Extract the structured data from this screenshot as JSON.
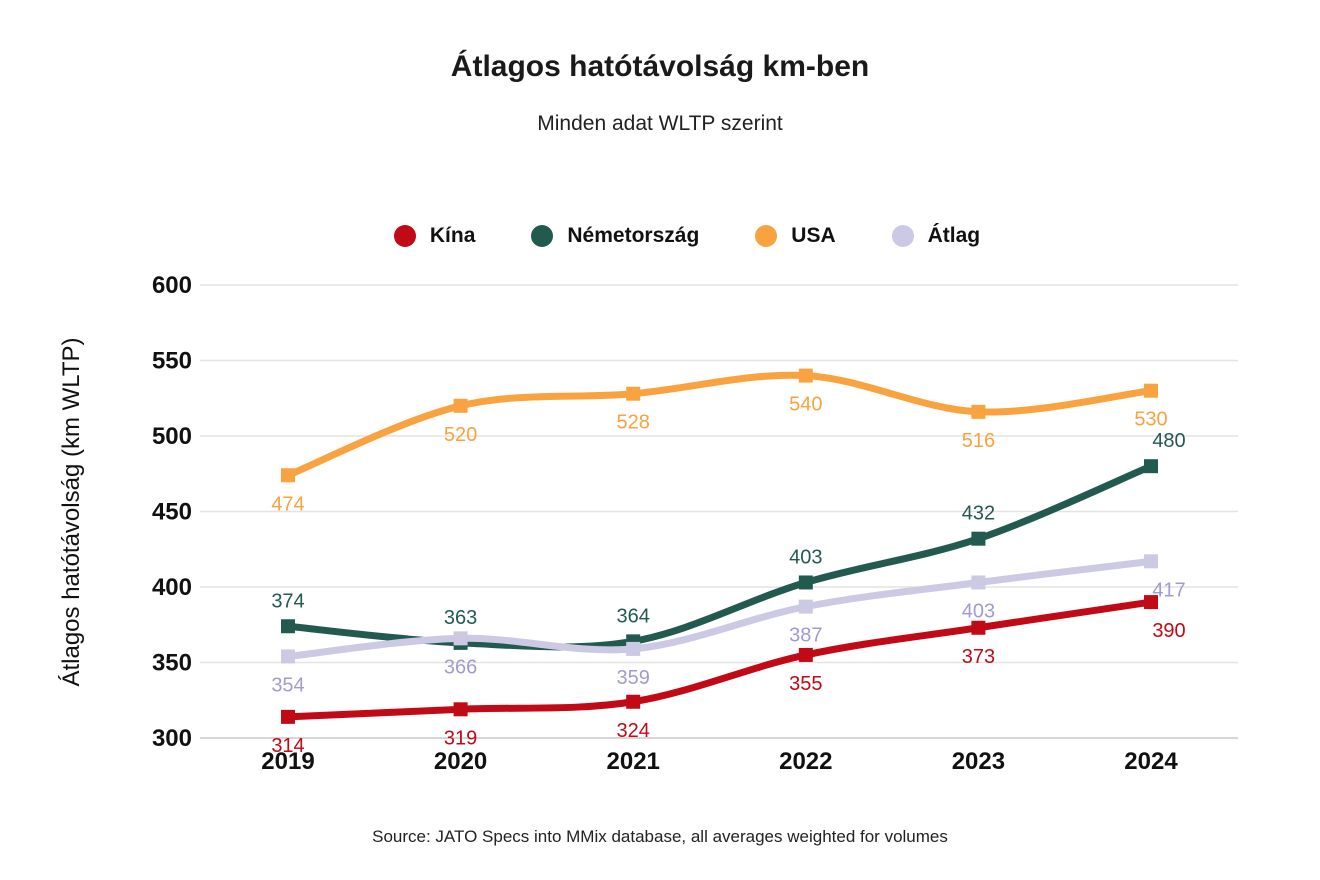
{
  "title": "Átlagos hatótávolság km-ben",
  "subtitle": "Minden adat WLTP szerint",
  "source": "Source: JATO Specs into MMix database, all averages weighted for volumes",
  "chart_data": {
    "type": "line",
    "x": [
      "2019",
      "2020",
      "2021",
      "2022",
      "2023",
      "2024"
    ],
    "xlabel": "",
    "ylabel": "Átlagos hatótávolság (km WLTP)",
    "ylim": [
      300,
      600
    ],
    "yticks": [
      300,
      350,
      400,
      450,
      500,
      550,
      600
    ],
    "grid": true,
    "legend_position": "top",
    "series": [
      {
        "name": "Kína",
        "color": "#c20a17",
        "label_color": "#c20a17",
        "label_position": "below",
        "end_label_dx": 18,
        "values": [
          314,
          319,
          324,
          355,
          373,
          390
        ]
      },
      {
        "name": "Németország",
        "color": "#235a50",
        "label_color": "#235a50",
        "label_position": "above",
        "end_label_dx": 18,
        "values": [
          374,
          363,
          364,
          403,
          432,
          480
        ]
      },
      {
        "name": "USA",
        "color": "#f9a340",
        "label_color": "#f9a340",
        "label_position": "below",
        "end_label_dx": 0,
        "values": [
          474,
          520,
          528,
          540,
          516,
          530
        ]
      },
      {
        "name": "Átlag",
        "color": "#ccc9e4",
        "label_color": "#a29bce",
        "label_position": "below",
        "end_label_dx": 18,
        "values": [
          354,
          366,
          359,
          387,
          403,
          417
        ]
      }
    ]
  }
}
